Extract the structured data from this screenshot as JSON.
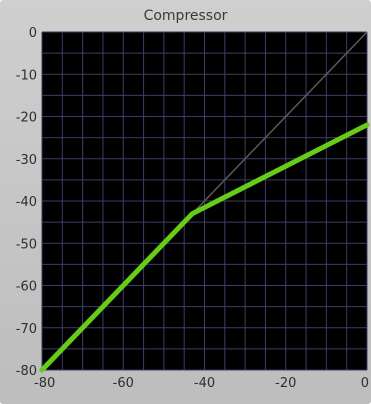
{
  "window": {
    "title": "Compressor"
  },
  "chart_data": {
    "type": "line",
    "title": "Compressor",
    "xlabel": "",
    "ylabel": "",
    "xlim": [
      -80,
      0
    ],
    "ylim": [
      -80,
      0
    ],
    "x_ticks": [
      "-80",
      "-60",
      "-40",
      "-20",
      "0"
    ],
    "y_ticks": [
      "0",
      "-10",
      "-20",
      "-30",
      "-40",
      "-50",
      "-60",
      "-70",
      "-80"
    ],
    "grid": true,
    "series": [
      {
        "name": "",
        "x": [
          -80,
          -43,
          0
        ],
        "y": [
          -80,
          -43,
          -22
        ],
        "color": "#66cc1a"
      }
    ],
    "reference_line": {
      "x": [
        -80,
        0
      ],
      "y": [
        -80,
        0
      ],
      "color": "#5a5a5a"
    },
    "colors": {
      "plot_background": "#000000",
      "grid": "#3c3c68",
      "panel": "#c6c6c6"
    }
  }
}
